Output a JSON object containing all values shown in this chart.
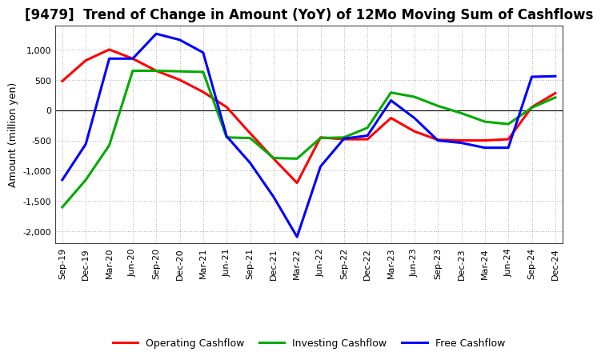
{
  "title": "[9479]  Trend of Change in Amount (YoY) of 12Mo Moving Sum of Cashflows",
  "ylabel": "Amount (million yen)",
  "x_labels": [
    "Sep-19",
    "Dec-19",
    "Mar-20",
    "Jun-20",
    "Sep-20",
    "Dec-20",
    "Mar-21",
    "Jun-21",
    "Sep-21",
    "Dec-21",
    "Mar-22",
    "Jun-22",
    "Sep-22",
    "Dec-22",
    "Mar-23",
    "Jun-23",
    "Sep-23",
    "Dec-23",
    "Mar-24",
    "Jun-24",
    "Sep-24",
    "Dec-24"
  ],
  "operating_cashflow": [
    480,
    820,
    1000,
    850,
    650,
    500,
    300,
    50,
    -380,
    -800,
    -1200,
    -450,
    -480,
    -480,
    -130,
    -350,
    -490,
    -500,
    -500,
    -480,
    50,
    280
  ],
  "investing_cashflow": [
    -1600,
    -1150,
    -580,
    650,
    650,
    640,
    630,
    -450,
    -460,
    -790,
    -800,
    -460,
    -450,
    -290,
    290,
    220,
    70,
    -50,
    -190,
    -230,
    40,
    210
  ],
  "free_cashflow": [
    -1150,
    -560,
    850,
    850,
    1260,
    1160,
    950,
    -430,
    -870,
    -1430,
    -2090,
    -930,
    -470,
    -420,
    160,
    -130,
    -500,
    -540,
    -620,
    -620,
    550,
    560
  ],
  "operating_color": "#FF0000",
  "investing_color": "#00AA00",
  "free_color": "#0000FF",
  "ylim": [
    -2200,
    1400
  ],
  "yticks": [
    -2000,
    -1500,
    -1000,
    -500,
    0,
    500,
    1000
  ],
  "grid_color": "#AAAAAA",
  "background_color": "#FFFFFF",
  "line_width": 2.2,
  "title_fontsize": 12,
  "ylabel_fontsize": 9,
  "tick_fontsize": 8,
  "legend_fontsize": 9
}
